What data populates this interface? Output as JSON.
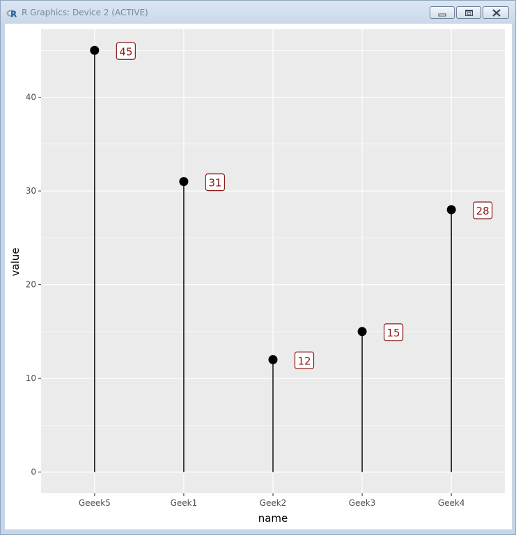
{
  "window": {
    "title": "R Graphics: Device 2 (ACTIVE)",
    "app_icon": "r-logo-icon",
    "controls": [
      "minimize-icon",
      "restore-icon",
      "close-icon"
    ]
  },
  "chart_data": {
    "type": "lollipop",
    "title": "",
    "xlabel": "name",
    "ylabel": "value",
    "categories": [
      "Geeek5",
      "Geek1",
      "Geek2",
      "Geek3",
      "Geek4"
    ],
    "values": [
      45,
      31,
      12,
      15,
      28
    ],
    "data_labels": [
      "45",
      "31",
      "12",
      "15",
      "28"
    ],
    "ylim": [
      -2.25,
      47.25
    ],
    "yticks": [
      0,
      10,
      20,
      30,
      40
    ],
    "ytick_labels": [
      "0",
      "10",
      "20",
      "30",
      "40"
    ],
    "grid": true,
    "legend": "none",
    "colors": {
      "panel_background": "#ebebeb",
      "grid_major": "#ffffff",
      "point": "#000000",
      "stem": "#000000",
      "label_text": "#8b1a1a",
      "label_border": "#8b1a1a",
      "axis_text": "#4d4d4d"
    }
  }
}
